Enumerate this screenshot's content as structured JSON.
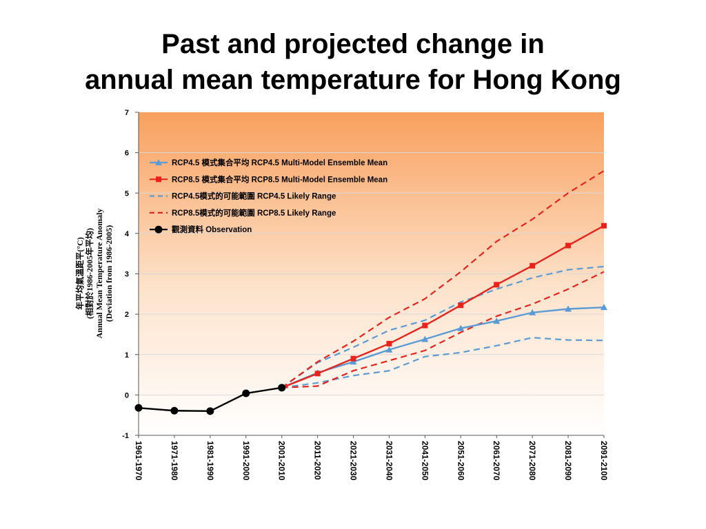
{
  "page": {
    "title_line1": "Past and projected change in",
    "title_line2": "annual mean temperature for Hong Kong"
  },
  "chart_data": {
    "type": "line",
    "title": "Past and projected change in annual mean temperature for Hong Kong",
    "ylabel_lines": [
      "年平均氣溫距平(°C)",
      "(相對於1986-2005年平均)",
      "Annual Mean Temperature Anomaly",
      "(Deviation from 1986-2005)"
    ],
    "ylim": [
      -1,
      7
    ],
    "yticks": [
      "-1",
      "0",
      "1",
      "2",
      "3",
      "4",
      "5",
      "6",
      "7"
    ],
    "categories": [
      "1961-1970",
      "1971-1980",
      "1981-1990",
      "1991-2000",
      "2001-2010",
      "2011-2020",
      "2021-2030",
      "2031-2040",
      "2041-2050",
      "2051-2060",
      "2061-2070",
      "2071-2080",
      "2081-2090",
      "2091-2100"
    ],
    "grid": true,
    "legend_position": "top-left",
    "series": [
      {
        "name": "RCP4.5 模式集合平均 RCP4.5 Multi-Model Ensemble Mean",
        "color": "#5b9bd5",
        "style": "solid",
        "marker": "triangle",
        "values": [
          null,
          null,
          null,
          null,
          0.18,
          0.55,
          0.82,
          1.12,
          1.38,
          1.65,
          1.83,
          2.04,
          2.13,
          2.17
        ]
      },
      {
        "name": "RCP8.5 模式集合平均 RCP8.5 Multi-Model Ensemble Mean",
        "color": "#e8231c",
        "style": "solid",
        "marker": "square",
        "values": [
          null,
          null,
          null,
          null,
          0.18,
          0.53,
          0.9,
          1.27,
          1.72,
          2.22,
          2.73,
          3.2,
          3.7,
          4.19
        ]
      },
      {
        "name": "RCP4.5模式的可能範圍 RCP4.5 Likely Range",
        "color": "#5b9bd5",
        "style": "dashed",
        "marker": "none",
        "range": {
          "upper": [
            null,
            null,
            null,
            null,
            0.18,
            0.8,
            1.18,
            1.6,
            1.85,
            2.3,
            2.62,
            2.9,
            3.1,
            3.18
          ],
          "lower": [
            null,
            null,
            null,
            null,
            0.18,
            0.3,
            0.48,
            0.6,
            0.95,
            1.05,
            1.22,
            1.42,
            1.36,
            1.35
          ]
        }
      },
      {
        "name": "RCP8.5模式的可能範圍 RCP8.5 Likely Range",
        "color": "#e8231c",
        "style": "dashed",
        "marker": "none",
        "range": {
          "upper": [
            null,
            null,
            null,
            null,
            0.18,
            0.82,
            1.33,
            1.92,
            2.38,
            3.05,
            3.8,
            4.35,
            5.0,
            5.55
          ],
          "lower": [
            null,
            null,
            null,
            null,
            0.18,
            0.22,
            0.6,
            0.85,
            1.1,
            1.55,
            1.95,
            2.25,
            2.62,
            3.05
          ]
        }
      },
      {
        "name": "觀測資料 Observation",
        "color": "#000000",
        "style": "solid",
        "marker": "circle",
        "values": [
          -0.32,
          -0.39,
          -0.4,
          0.04,
          0.18,
          null,
          null,
          null,
          null,
          null,
          null,
          null,
          null,
          null
        ]
      }
    ]
  }
}
